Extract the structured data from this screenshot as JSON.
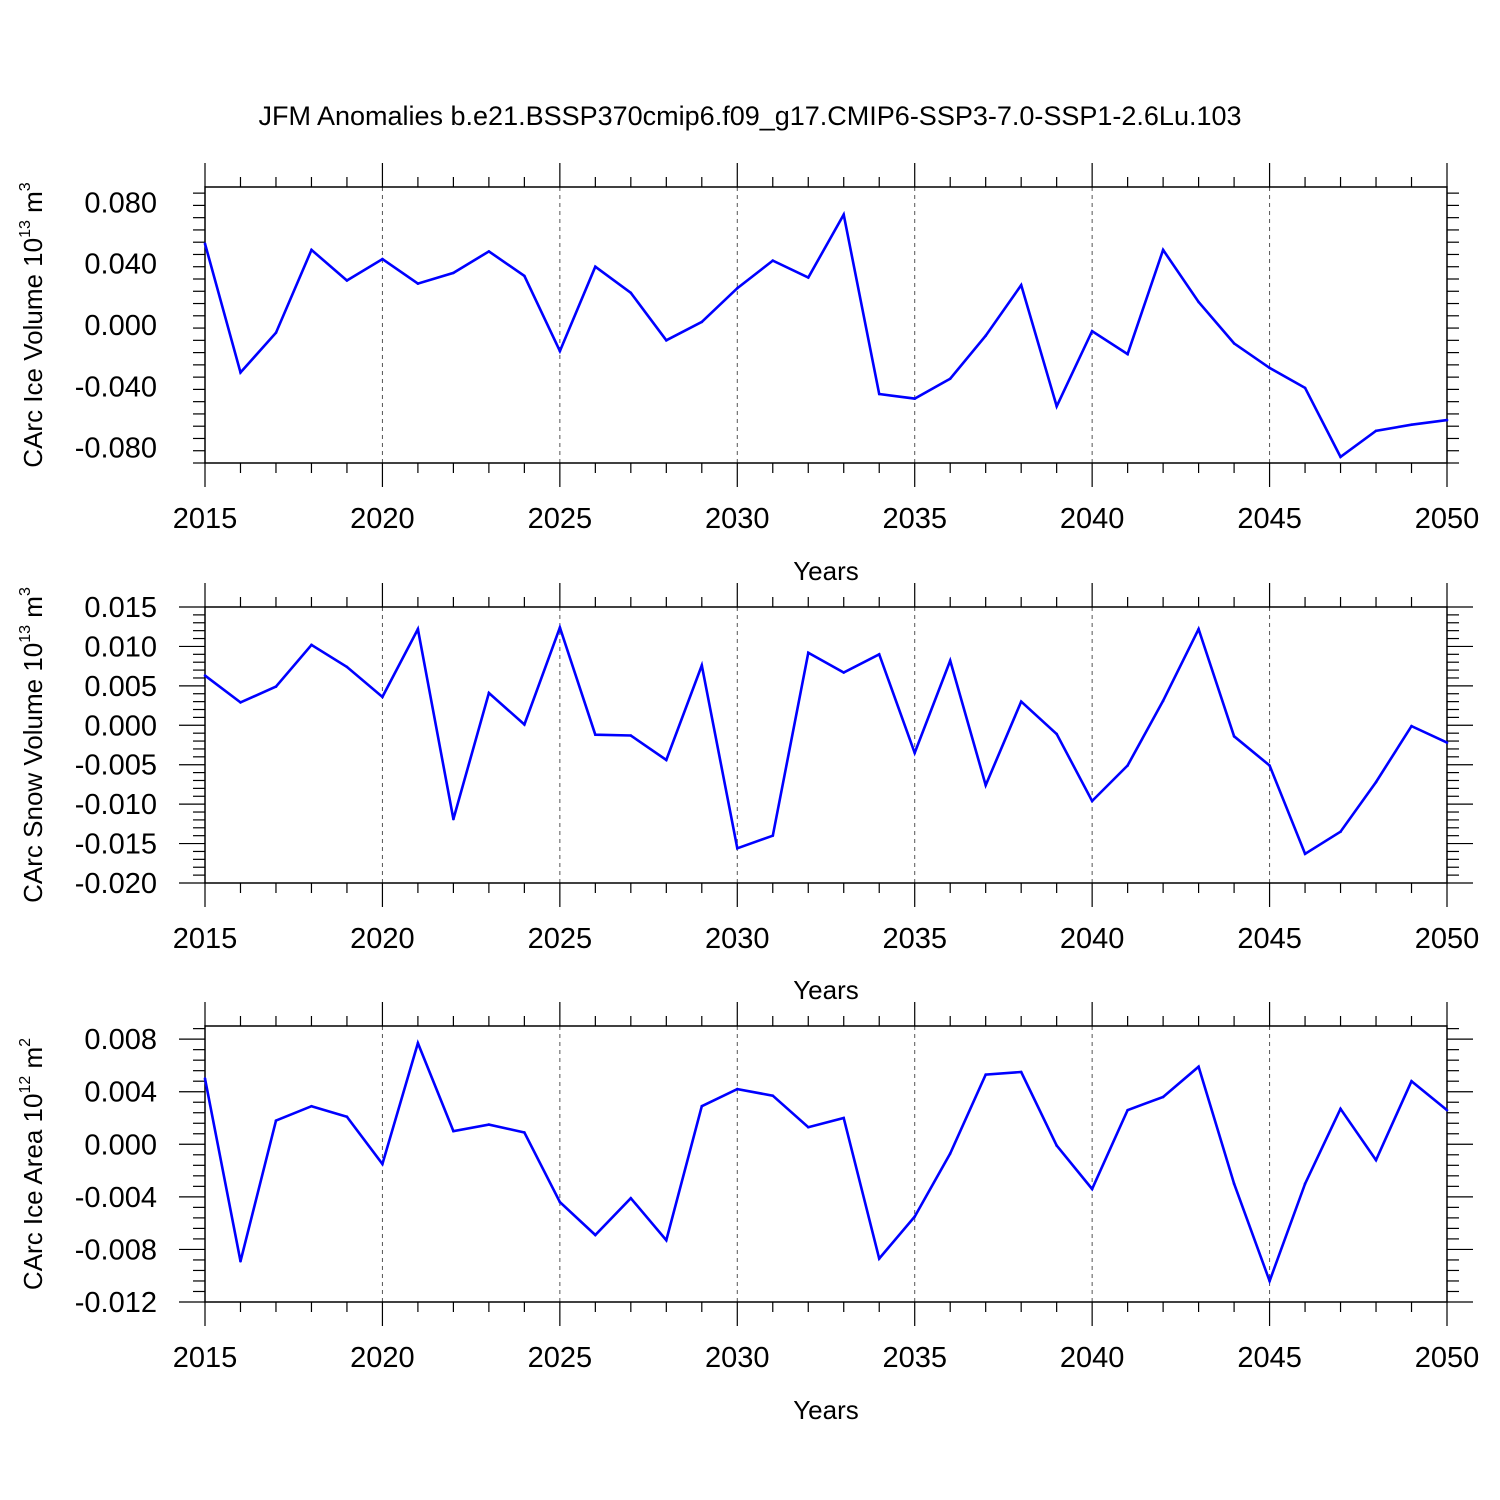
{
  "title": "JFM Anomalies b.e21.BSSP370cmip6.f09_g17.CMIP6-SSP3-7.0-SSP1-2.6Lu.103",
  "line_color": "#0000ff",
  "chart_data": [
    {
      "type": "line",
      "xlabel": "Years",
      "ylabel": {
        "text": "CArc Ice Volume 10",
        "exponent": "13",
        "unit": "m",
        "unit_exponent": "3"
      },
      "xlim": [
        2015,
        2050
      ],
      "ylim": [
        -0.09,
        0.09
      ],
      "x_ticks": [
        2015,
        2020,
        2025,
        2030,
        2035,
        2040,
        2045,
        2050
      ],
      "x_tick_labels": [
        "2015",
        "2020",
        "2025",
        "2030",
        "2035",
        "2040",
        "2045",
        "2050"
      ],
      "y_ticks": [
        -0.08,
        -0.04,
        0.0,
        0.04,
        0.08
      ],
      "y_tick_labels": [
        "-0.080",
        "-0.040",
        "0.000",
        "0.040",
        "0.080"
      ],
      "grid": "dashed vertical at 5-year ticks",
      "x": [
        2015,
        2016,
        2017,
        2018,
        2019,
        2020,
        2021,
        2022,
        2023,
        2024,
        2025,
        2026,
        2027,
        2028,
        2029,
        2030,
        2031,
        2032,
        2033,
        2034,
        2035,
        2036,
        2037,
        2038,
        2039,
        2040,
        2041,
        2042,
        2043,
        2044,
        2045,
        2046,
        2047,
        2048,
        2049,
        2050
      ],
      "values": [
        0.053,
        -0.031,
        -0.005,
        0.049,
        0.029,
        0.043,
        0.027,
        0.034,
        0.048,
        0.032,
        -0.017,
        0.038,
        0.021,
        -0.01,
        0.002,
        0.024,
        0.042,
        0.031,
        0.072,
        -0.045,
        -0.048,
        -0.035,
        -0.007,
        0.026,
        -0.053,
        -0.004,
        -0.019,
        0.049,
        0.015,
        -0.012,
        -0.028,
        -0.041,
        -0.086,
        -0.069,
        -0.065,
        -0.062
      ]
    },
    {
      "type": "line",
      "xlabel": "Years",
      "ylabel": {
        "text": "CArc Snow Volume 10",
        "exponent": "13",
        "unit": "m",
        "unit_exponent": "3"
      },
      "xlim": [
        2015,
        2050
      ],
      "ylim": [
        -0.02,
        0.015
      ],
      "x_ticks": [
        2015,
        2020,
        2025,
        2030,
        2035,
        2040,
        2045,
        2050
      ],
      "x_tick_labels": [
        "2015",
        "2020",
        "2025",
        "2030",
        "2035",
        "2040",
        "2045",
        "2050"
      ],
      "y_ticks": [
        -0.02,
        -0.015,
        -0.01,
        -0.005,
        0.0,
        0.005,
        0.01,
        0.015
      ],
      "y_tick_labels": [
        "-0.020",
        "-0.015",
        "-0.010",
        "-0.005",
        "0.000",
        "0.005",
        "0.010",
        "0.015"
      ],
      "grid": "dashed vertical at 5-year ticks",
      "x": [
        2015,
        2016,
        2017,
        2018,
        2019,
        2020,
        2021,
        2022,
        2023,
        2024,
        2025,
        2026,
        2027,
        2028,
        2029,
        2030,
        2031,
        2032,
        2033,
        2034,
        2035,
        2036,
        2037,
        2038,
        2039,
        2040,
        2041,
        2042,
        2043,
        2044,
        2045,
        2046,
        2047,
        2048,
        2049,
        2050
      ],
      "values": [
        0.0063,
        0.0029,
        0.0049,
        0.0102,
        0.0074,
        0.0036,
        0.0122,
        -0.0119,
        0.0041,
        0.0001,
        0.0124,
        -0.0012,
        -0.0013,
        -0.0044,
        0.0076,
        -0.0156,
        -0.014,
        0.0092,
        0.0067,
        0.009,
        -0.0035,
        0.0082,
        -0.0076,
        0.003,
        -0.0011,
        -0.0096,
        -0.0051,
        0.0031,
        0.0122,
        -0.0014,
        -0.0051,
        -0.0163,
        -0.0135,
        -0.0072,
        -0.0001,
        -0.0022
      ]
    },
    {
      "type": "line",
      "xlabel": "Years",
      "ylabel": {
        "text": "CArc Ice Area 10",
        "exponent": "12",
        "unit": "m",
        "unit_exponent": "2"
      },
      "xlim": [
        2015,
        2050
      ],
      "ylim": [
        -0.012,
        0.009
      ],
      "x_ticks": [
        2015,
        2020,
        2025,
        2030,
        2035,
        2040,
        2045,
        2050
      ],
      "x_tick_labels": [
        "2015",
        "2020",
        "2025",
        "2030",
        "2035",
        "2040",
        "2045",
        "2050"
      ],
      "y_ticks": [
        -0.012,
        -0.008,
        -0.004,
        0.0,
        0.004,
        0.008
      ],
      "y_tick_labels": [
        "-0.012",
        "-0.008",
        "-0.004",
        "0.000",
        "0.004",
        "0.008"
      ],
      "grid": "dashed vertical at 5-year ticks",
      "x": [
        2015,
        2016,
        2017,
        2018,
        2019,
        2020,
        2021,
        2022,
        2023,
        2024,
        2025,
        2026,
        2027,
        2028,
        2029,
        2030,
        2031,
        2032,
        2033,
        2034,
        2035,
        2036,
        2037,
        2038,
        2039,
        2040,
        2041,
        2042,
        2043,
        2044,
        2045,
        2046,
        2047,
        2048,
        2049,
        2050
      ],
      "values": [
        0.005,
        -0.0089,
        0.0018,
        0.0029,
        0.0021,
        -0.0015,
        0.0077,
        0.001,
        0.0015,
        0.0009,
        -0.0044,
        -0.0069,
        -0.0041,
        -0.0073,
        0.0029,
        0.0042,
        0.0037,
        0.0013,
        0.002,
        -0.0087,
        -0.0055,
        -0.0007,
        0.0053,
        0.0055,
        -0.0001,
        -0.0034,
        0.0026,
        0.0036,
        0.0059,
        -0.003,
        -0.0104,
        -0.003,
        0.0027,
        -0.0012,
        0.0048,
        0.0026
      ]
    }
  ]
}
